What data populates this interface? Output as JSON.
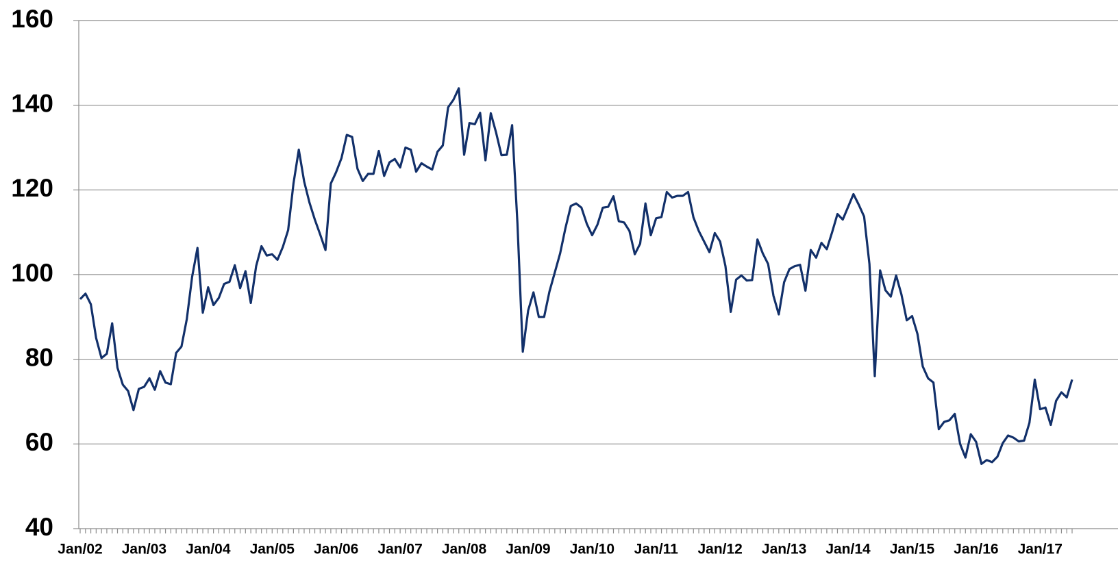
{
  "chart_data": {
    "type": "line",
    "categories": [
      "Jan/02",
      null,
      null,
      null,
      null,
      null,
      null,
      null,
      null,
      null,
      null,
      null,
      "Jan/03",
      null,
      null,
      null,
      null,
      null,
      null,
      null,
      null,
      null,
      null,
      null,
      "Jan/04",
      null,
      null,
      null,
      null,
      null,
      null,
      null,
      null,
      null,
      null,
      null,
      "Jan/05",
      null,
      null,
      null,
      null,
      null,
      null,
      null,
      null,
      null,
      null,
      null,
      "Jan/06",
      null,
      null,
      null,
      null,
      null,
      null,
      null,
      null,
      null,
      null,
      null,
      "Jan/07",
      null,
      null,
      null,
      null,
      null,
      null,
      null,
      null,
      null,
      null,
      null,
      "Jan/08",
      null,
      null,
      null,
      null,
      null,
      null,
      null,
      null,
      null,
      null,
      null,
      "Jan/09",
      null,
      null,
      null,
      null,
      null,
      null,
      null,
      null,
      null,
      null,
      null,
      "Jan/10",
      null,
      null,
      null,
      null,
      null,
      null,
      null,
      null,
      null,
      null,
      null,
      "Jan/11",
      null,
      null,
      null,
      null,
      null,
      null,
      null,
      null,
      null,
      null,
      null,
      "Jan/12",
      null,
      null,
      null,
      null,
      null,
      null,
      null,
      null,
      null,
      null,
      null,
      "Jan/13",
      null,
      null,
      null,
      null,
      null,
      null,
      null,
      null,
      null,
      null,
      null,
      "Jan/14",
      null,
      null,
      null,
      null,
      null,
      null,
      null,
      null,
      null,
      null,
      null,
      "Jan/15",
      null,
      null,
      null,
      null,
      null,
      null,
      null,
      null,
      null,
      null,
      null,
      "Jan/16",
      null,
      null,
      null,
      null,
      null,
      null,
      null,
      null,
      null,
      null,
      null,
      "Jan/17",
      null,
      null,
      null,
      null,
      null,
      null
    ],
    "values": [
      94.2,
      95.5,
      93,
      85,
      80.3,
      81.3,
      88.5,
      78,
      74,
      72.5,
      68,
      73,
      73.5,
      75.5,
      72.8,
      77.2,
      74.5,
      74.1,
      81.5,
      83,
      89.5,
      99.5,
      106.3,
      91,
      97,
      92.8,
      94.5,
      97.8,
      98.3,
      102.2,
      96.8,
      100.8,
      93.3,
      102,
      106.7,
      104.5,
      104.8,
      103.5,
      106.5,
      110.5,
      121.5,
      129.5,
      122,
      117,
      113,
      109.5,
      105.8,
      121.5,
      124.2,
      127.5,
      133,
      132.5,
      125,
      122.1,
      123.8,
      123.8,
      129.2,
      123.3,
      126.5,
      127.3,
      125.3,
      130,
      129.5,
      124.3,
      126.3,
      125.5,
      124.8,
      129,
      130.5,
      139.5,
      141.3,
      144,
      128.3,
      135.8,
      135.5,
      138.2,
      127,
      138.1,
      133.5,
      128.2,
      128.3,
      135.3,
      112,
      81.8,
      91.5,
      95.8,
      90,
      90,
      96,
      100.5,
      105,
      111,
      116.2,
      116.8,
      115.8,
      112,
      109.3,
      111.8,
      115.8,
      116,
      118.5,
      112.6,
      112.3,
      110.3,
      104.8,
      107.3,
      116.8,
      109.3,
      113.3,
      113.6,
      119.5,
      118.2,
      118.6,
      118.6,
      119.5,
      113.5,
      110.3,
      107.8,
      105.3,
      109.8,
      107.8,
      102,
      91.2,
      98.8,
      99.8,
      98.6,
      98.7,
      108.3,
      105,
      102.5,
      95,
      90.6,
      98.2,
      101.3,
      102,
      102.3,
      96.2,
      105.8,
      104,
      107.5,
      106,
      110,
      114.3,
      113,
      116,
      119,
      116.5,
      113.7,
      102.5,
      76,
      101,
      96.3,
      94.8,
      99.8,
      95.3,
      89.2,
      90.2,
      86,
      78.3,
      75.5,
      74.5,
      63.5,
      65.2,
      65.6,
      67.1,
      60,
      56.8,
      62.3,
      60.5,
      55.3,
      56.2,
      55.7,
      57,
      60.2,
      62,
      61.5,
      60.6,
      60.8,
      65,
      75.2,
      68.2,
      68.6,
      64.5,
      70.2,
      72.2,
      71,
      75.2
    ],
    "color": "#12306a",
    "ylim": [
      40,
      160
    ],
    "yticks": [
      40,
      60,
      80,
      100,
      120,
      140,
      160
    ],
    "grid": true
  }
}
